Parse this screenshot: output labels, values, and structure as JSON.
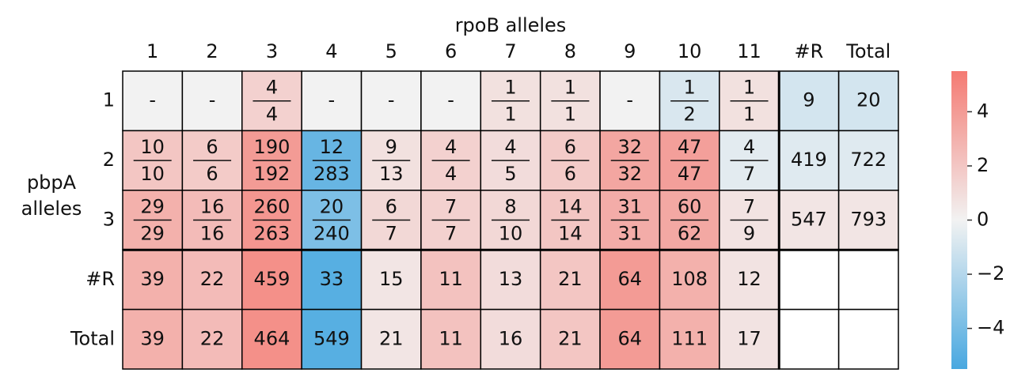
{
  "chart_data": {
    "type": "heatmap",
    "x_label": "rpoB alleles",
    "y_label": [
      "pbpA",
      "alleles"
    ],
    "columns": [
      "1",
      "2",
      "3",
      "4",
      "5",
      "6",
      "7",
      "8",
      "9",
      "10",
      "11",
      "#R",
      "Total"
    ],
    "rows": [
      "1",
      "2",
      "3",
      "#R",
      "Total"
    ],
    "cells": [
      [
        "-",
        "-",
        {
          "num": 4,
          "den": 4
        },
        "-",
        "-",
        "-",
        {
          "num": 1,
          "den": 1
        },
        {
          "num": 1,
          "den": 1
        },
        "-",
        {
          "num": 1,
          "den": 2
        },
        {
          "num": 1,
          "den": 1
        },
        9,
        20
      ],
      [
        {
          "num": 10,
          "den": 10
        },
        {
          "num": 6,
          "den": 6
        },
        {
          "num": 190,
          "den": 192
        },
        {
          "num": 12,
          "den": 283
        },
        {
          "num": 9,
          "den": 13
        },
        {
          "num": 4,
          "den": 4
        },
        {
          "num": 4,
          "den": 5
        },
        {
          "num": 6,
          "den": 6
        },
        {
          "num": 32,
          "den": 32
        },
        {
          "num": 47,
          "den": 47
        },
        {
          "num": 4,
          "den": 7
        },
        419,
        722
      ],
      [
        {
          "num": 29,
          "den": 29
        },
        {
          "num": 16,
          "den": 16
        },
        {
          "num": 260,
          "den": 263
        },
        {
          "num": 20,
          "den": 240
        },
        {
          "num": 6,
          "den": 7
        },
        {
          "num": 7,
          "den": 7
        },
        {
          "num": 8,
          "den": 10
        },
        {
          "num": 14,
          "den": 14
        },
        {
          "num": 31,
          "den": 31
        },
        {
          "num": 60,
          "den": 62
        },
        {
          "num": 7,
          "den": 9
        },
        547,
        793
      ],
      [
        39,
        22,
        459,
        33,
        15,
        11,
        13,
        21,
        64,
        108,
        12,
        null,
        null
      ],
      [
        39,
        22,
        464,
        549,
        21,
        11,
        16,
        21,
        64,
        111,
        17,
        null,
        null
      ]
    ],
    "z": [
      [
        0,
        0,
        1.5,
        0,
        0,
        0,
        0.8,
        0.8,
        0,
        -0.8,
        0.8,
        -1,
        -1
      ],
      [
        2,
        1.8,
        4,
        -4.5,
        0.8,
        1.5,
        1,
        1.8,
        3.5,
        3.8,
        -0.5,
        -0.6,
        -0.6
      ],
      [
        3,
        2.5,
        4.2,
        -3.8,
        1.2,
        1.5,
        1.2,
        2,
        3.2,
        3.4,
        0.7,
        0.6,
        0.6
      ],
      [
        3,
        2.5,
        4.5,
        -5,
        0.6,
        2.2,
        1,
        2,
        4,
        3,
        0.7,
        null,
        null
      ],
      [
        3,
        2.5,
        4.5,
        -5,
        0.6,
        2.2,
        1,
        2,
        4,
        3,
        0.7,
        null,
        null
      ]
    ],
    "colors": {
      "low": "#48a8e0",
      "mid": "#f2f2f2",
      "high": "#f47a72"
    },
    "zlim": [
      -5.5,
      5.5
    ],
    "zticks": [
      {
        "value": -4,
        "label": "−4"
      },
      {
        "value": -2,
        "label": "−2"
      },
      0,
      2,
      4
    ]
  }
}
